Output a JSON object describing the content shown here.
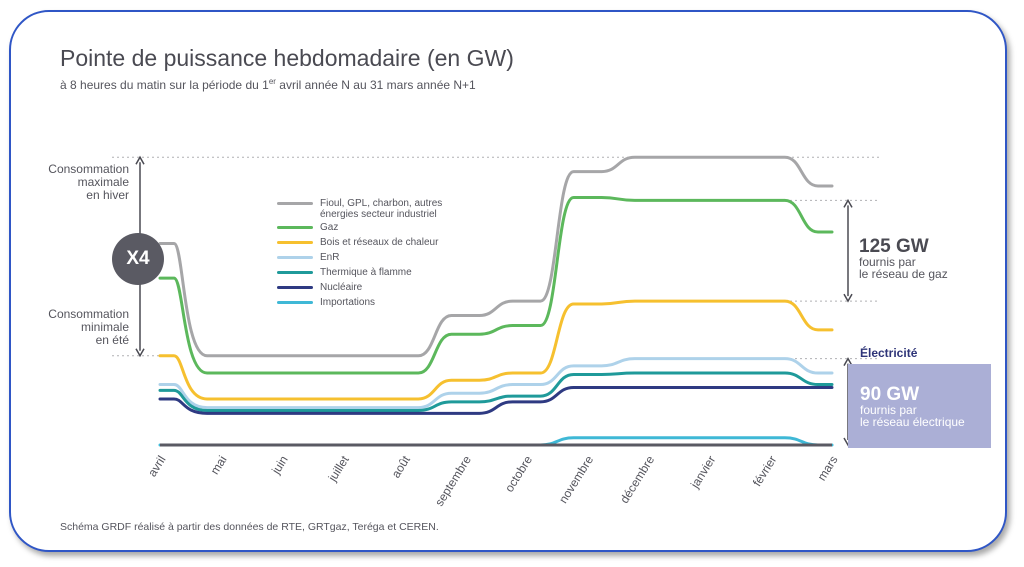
{
  "title": "Pointe de puissance hebdomadaire (en GW)",
  "subtitle": {
    "before": "à 8 heures du matin sur la période du 1",
    "sup": "er",
    "after": " avril année N au 31 mars année N+1"
  },
  "source": "Schéma GRDF réalisé à partir des données de RTE, GRTgaz, Teréga et CEREN.",
  "annotations": {
    "max_winter": [
      "Consommation",
      "maximale",
      "en hiver"
    ],
    "min_summer": [
      "Consommation",
      "minimale",
      "en été"
    ],
    "ratio": "X4",
    "gas_value": "125 GW",
    "gas_label": [
      "fournis par",
      "le réseau de gaz"
    ],
    "electricity_label": "Électricité",
    "electricity_value": "90 GW",
    "electricity_caption": [
      "fournis par",
      "le réseau électrique"
    ]
  },
  "chart_data": {
    "type": "line",
    "x": [
      "avril",
      "mai",
      "juin",
      "juillet",
      "août",
      "septembre",
      "octobre",
      "novembre",
      "décembre",
      "janvier",
      "février",
      "mars"
    ],
    "xlabel": "",
    "ylabel": "",
    "ylim": [
      0,
      205
    ],
    "grid": false,
    "legend_position": "inside-top-left",
    "stacked_cumulative": true,
    "series": [
      {
        "name": "Fioul, GPL, charbon, autres énergies secteur industriel",
        "color": "#a6a6a8",
        "values": [
          140,
          62,
          62,
          62,
          62,
          90,
          100,
          190,
          200,
          200,
          200,
          180
        ]
      },
      {
        "name": "Gaz",
        "color": "#5cb85c",
        "values": [
          116,
          50,
          50,
          50,
          50,
          77,
          83,
          172,
          170,
          170,
          170,
          148
        ]
      },
      {
        "name": "Bois et réseaux de chaleur",
        "color": "#f6c02f",
        "values": [
          62,
          32,
          32,
          32,
          32,
          45,
          50,
          98,
          100,
          100,
          100,
          80
        ]
      },
      {
        "name": "EnR",
        "color": "#aed2ea",
        "values": [
          42,
          26,
          26,
          26,
          26,
          36,
          42,
          55,
          60,
          60,
          60,
          50
        ]
      },
      {
        "name": "Thermique à flamme",
        "color": "#1f9a9a",
        "values": [
          38,
          24,
          24,
          24,
          24,
          30,
          34,
          49,
          50,
          50,
          50,
          42
        ]
      },
      {
        "name": "Nucléaire",
        "color": "#2e3a82",
        "values": [
          32,
          22,
          22,
          22,
          22,
          22,
          30,
          40,
          40,
          40,
          40,
          40
        ]
      },
      {
        "name": "Importations",
        "color": "#3fb8d6",
        "values": [
          0,
          0,
          0,
          0,
          0,
          0,
          0,
          5,
          5,
          5,
          5,
          0
        ]
      }
    ]
  }
}
